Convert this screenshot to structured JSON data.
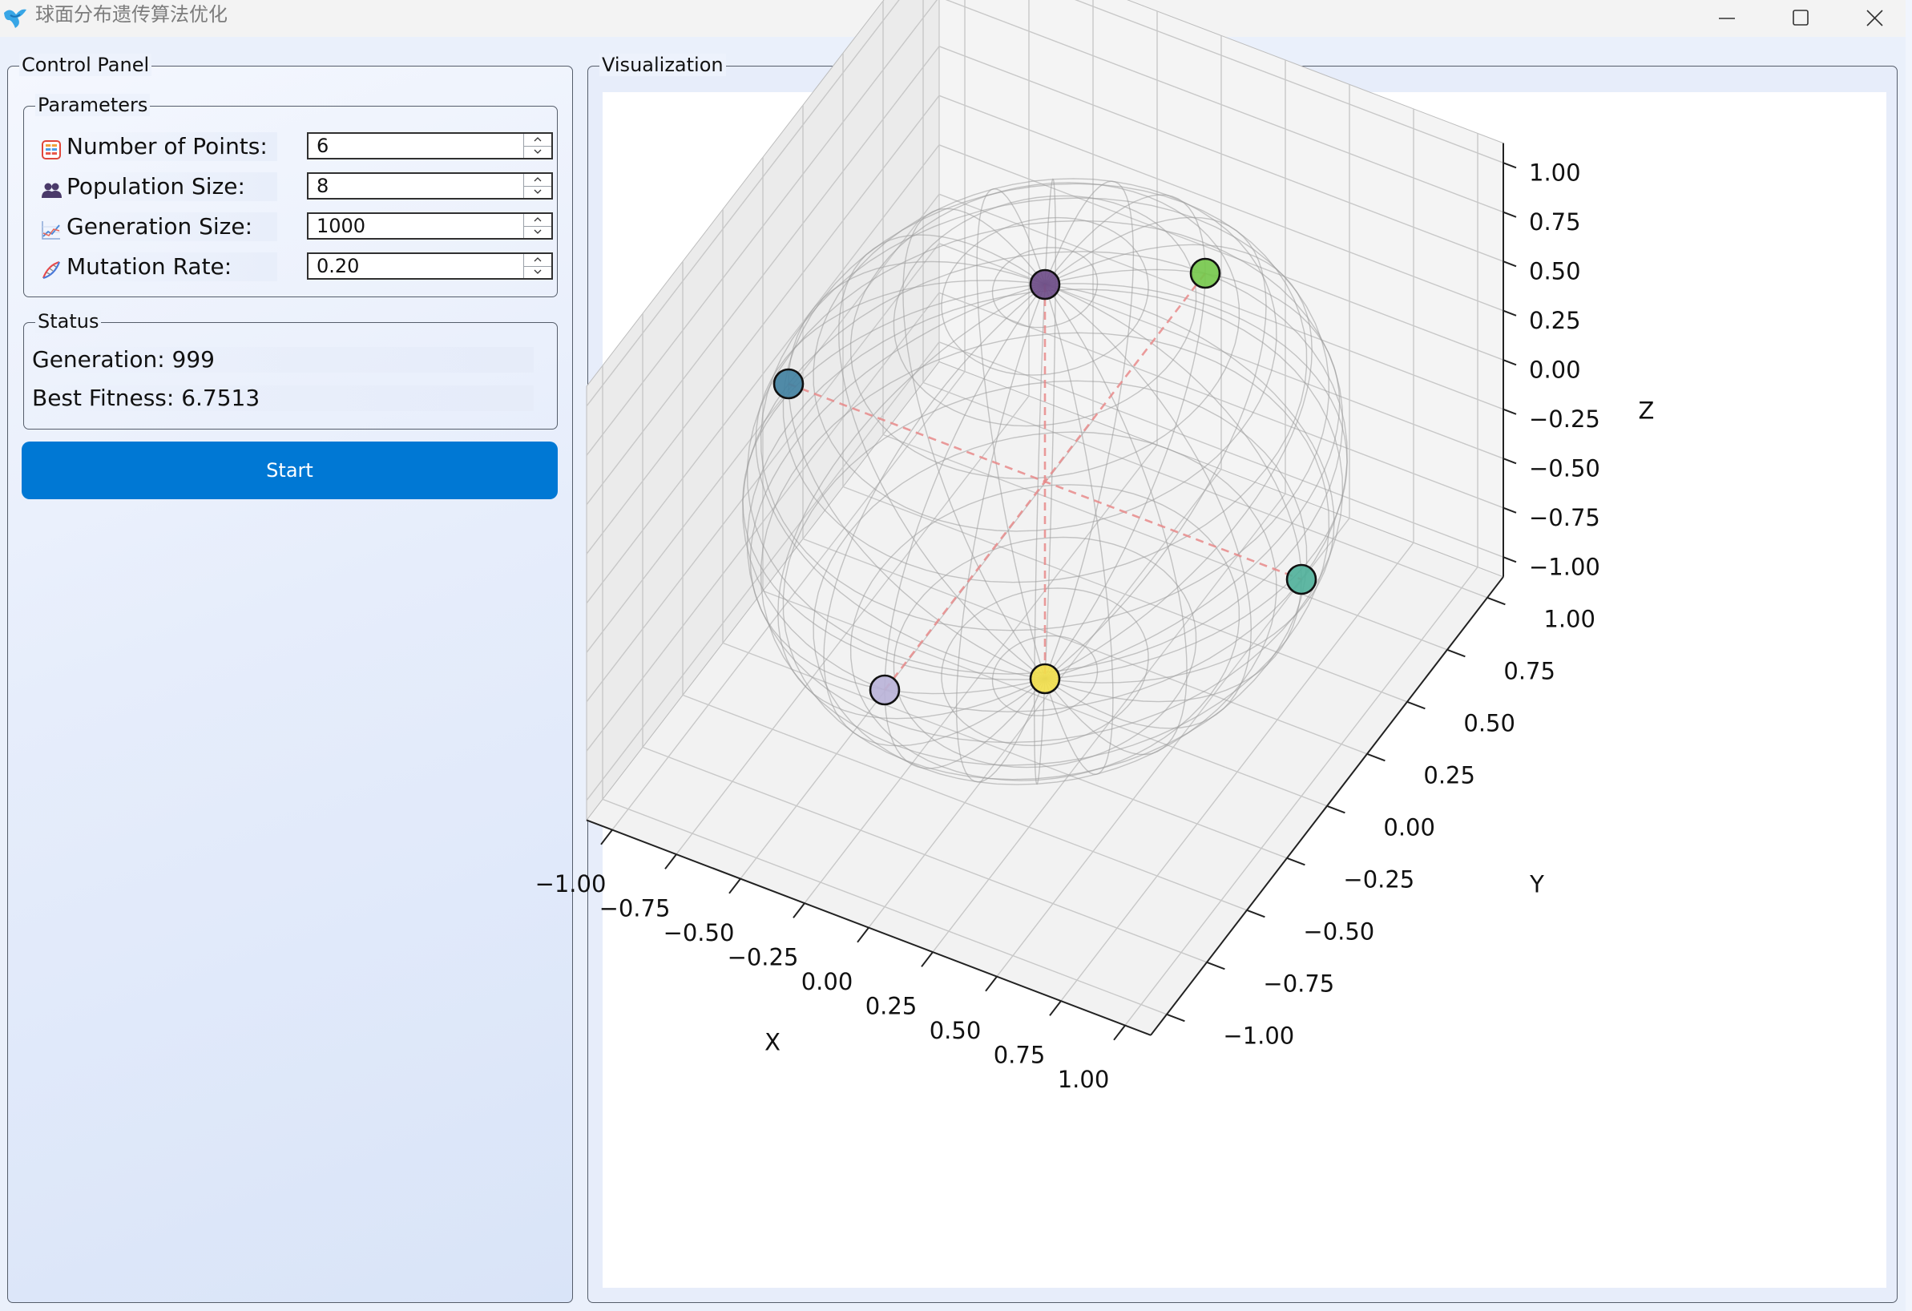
{
  "window": {
    "title": "球面分布遗传算法优化",
    "controls": [
      "minimize",
      "maximize",
      "close"
    ]
  },
  "control_panel": {
    "title": "Control Panel",
    "parameters": {
      "title": "Parameters",
      "fields": [
        {
          "label": "Number of Points:",
          "value": "6",
          "icon": "grid-icon"
        },
        {
          "label": "Population Size:",
          "value": "8",
          "icon": "people-icon"
        },
        {
          "label": "Generation Size:",
          "value": "1000",
          "icon": "chart-icon"
        },
        {
          "label": "Mutation Rate:",
          "value": "0.20",
          "icon": "dna-icon"
        }
      ]
    },
    "status": {
      "title": "Status",
      "generation": "Generation: 999",
      "best_fitness": "Best Fitness: 6.7513"
    },
    "start_label": "Start"
  },
  "visualization": {
    "title": "Visualization"
  },
  "chart_data": {
    "type": "scatter",
    "projection": "3d",
    "xlabel": "X",
    "ylabel": "Y",
    "zlabel": "Z",
    "xlim": [
      -1.1,
      1.1
    ],
    "ylim": [
      -1.1,
      1.1
    ],
    "zlim": [
      -1.1,
      1.1
    ],
    "x_ticks": [
      "−1.00",
      "−0.75",
      "−0.50",
      "−0.25",
      "0.00",
      "0.25",
      "0.50",
      "0.75",
      "1.00"
    ],
    "y_ticks": [
      "−1.00",
      "−0.75",
      "−0.50",
      "−0.25",
      "0.00",
      "0.25",
      "0.50",
      "0.75",
      "1.00"
    ],
    "z_ticks": [
      "−1.00",
      "−0.75",
      "−0.50",
      "−0.25",
      "0.00",
      "0.25",
      "0.50",
      "0.75",
      "1.00"
    ],
    "grid": true,
    "sphere": {
      "radius": 1.0,
      "style": "wireframe",
      "color": "#9a9a9a"
    },
    "points": [
      {
        "x": 0.0,
        "y": 0.0,
        "z": 1.0,
        "color": "#6c4a86"
      },
      {
        "x": 0.0,
        "y": 0.0,
        "z": -1.0,
        "color": "#f2df4a"
      },
      {
        "x": -1.0,
        "y": 0.0,
        "z": 0.0,
        "color": "#3f7fa0"
      },
      {
        "x": 1.0,
        "y": 0.0,
        "z": 0.0,
        "color": "#4fb09a"
      },
      {
        "x": 0.0,
        "y": -1.0,
        "z": 0.0,
        "color": "#b9b3d8"
      },
      {
        "x": 0.0,
        "y": 1.0,
        "z": 0.0,
        "color": "#74c84a"
      }
    ],
    "connections": {
      "style": "dashed",
      "color": "#e8898a"
    }
  }
}
